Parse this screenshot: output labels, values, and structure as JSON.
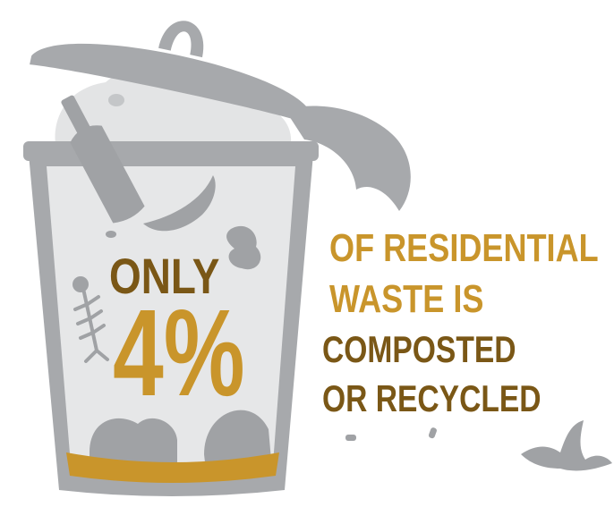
{
  "infographic": {
    "only_label": "ONLY",
    "percent_value": "4%",
    "caption_lines": [
      "OF RESIDENTIAL",
      "WASTE IS",
      "COMPOSTED",
      "OR RECYCLED"
    ]
  },
  "colors": {
    "gold": "#c9952b",
    "brown": "#7a5716",
    "can_gray": "#a7a9ac",
    "can_body": "#e6e7e8",
    "trash_gray": "#c7c8ca",
    "item_gray": "#a0a2a5"
  },
  "icons": [
    "trash-can-icon",
    "glass-bottle-icon",
    "banana-icon",
    "apple-core-icon",
    "fish-bone-icon",
    "banana-peel-icon"
  ]
}
